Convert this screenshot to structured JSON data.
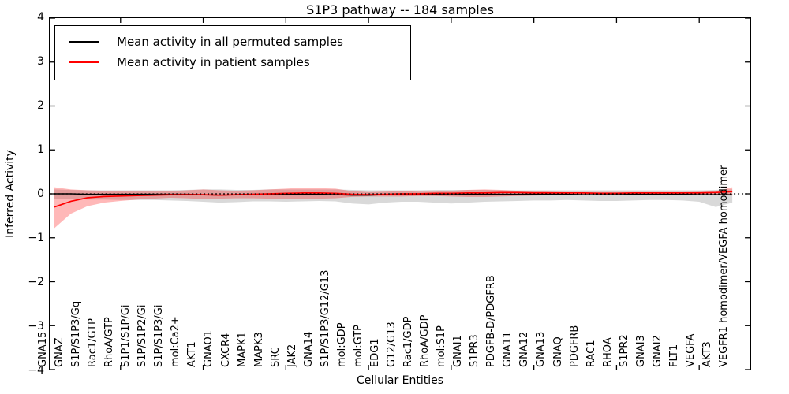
{
  "title": "S1P3 pathway -- 184 samples",
  "axes": {
    "xlabel": "Cellular Entities",
    "ylabel": "Inferred Activity",
    "yticks": [
      "4",
      "3",
      "2",
      "1",
      "0",
      "−1",
      "−2",
      "−3",
      "−4"
    ],
    "ylim": [
      -4,
      4
    ]
  },
  "legend": {
    "items": [
      {
        "label": "Mean activity in all permuted samples",
        "color": "#000000"
      },
      {
        "label": "Mean activity in patient samples",
        "color": "#ff0000"
      }
    ]
  },
  "colors": {
    "permuted_line": "#000000",
    "patient_line": "#ff0000",
    "permuted_band": "#808080",
    "patient_band": "#ff0000",
    "zero_line": "#000000",
    "frame": "#000000"
  },
  "chart_data": {
    "type": "line",
    "title": "S1P3 pathway -- 184 samples",
    "xlabel": "Cellular Entities",
    "ylabel": "Inferred Activity",
    "ylim": [
      -4,
      4
    ],
    "grid": false,
    "legend_position": "upper left",
    "zero_line": true,
    "x_major_tick_indices": [
      4,
      9,
      14,
      19,
      24,
      29,
      34,
      39
    ],
    "categories": [
      "GNA15",
      "GNAZ",
      "S1P/S1P3/Gq",
      "Rac1/GTP",
      "RhoA/GTP",
      "S1P1/S1P/Gi",
      "S1P/S1P2/Gi",
      "S1P/S1P3/Gi",
      "mol:Ca2+",
      "AKT1",
      "GNAO1",
      "CXCR4",
      "MAPK1",
      "MAPK3",
      "SRC",
      "JAK2",
      "GNA14",
      "S1P/S1P3/G12/G13",
      "mol:GDP",
      "mol:GTP",
      "EDG1",
      "G12/G13",
      "Rac1/GDP",
      "RhoA/GDP",
      "mol:S1P",
      "GNAI1",
      "S1PR3",
      "PDGFB-D/PDGFRB",
      "GNA11",
      "GNA12",
      "GNA13",
      "GNAQ",
      "PDGFRB",
      "RAC1",
      "RHOA",
      "S1PR2",
      "GNAI3",
      "GNAI2",
      "FLT1",
      "VEGFA",
      "AKT3",
      "VEGFR1 homodimer/VEGFA homodimer"
    ],
    "series": [
      {
        "name": "Mean activity in all permuted samples",
        "color": "#000000",
        "band_opacity": 0.3,
        "values": [
          0.0,
          0.0,
          -0.01,
          -0.01,
          -0.01,
          -0.01,
          -0.01,
          -0.01,
          -0.01,
          -0.02,
          -0.03,
          -0.02,
          -0.01,
          -0.01,
          -0.01,
          -0.01,
          -0.01,
          -0.02,
          -0.03,
          -0.03,
          -0.02,
          -0.01,
          -0.01,
          -0.01,
          -0.02,
          -0.01,
          -0.01,
          -0.01,
          -0.01,
          -0.01,
          -0.01,
          -0.01,
          -0.02,
          -0.02,
          -0.02,
          -0.01,
          -0.01,
          -0.01,
          -0.01,
          -0.02,
          -0.02,
          -0.02
        ],
        "band_upper": [
          0.1,
          0.09,
          0.08,
          0.08,
          0.08,
          0.08,
          0.08,
          0.08,
          0.09,
          0.1,
          0.1,
          0.09,
          0.09,
          0.1,
          0.1,
          0.1,
          0.1,
          0.1,
          0.09,
          0.08,
          0.08,
          0.08,
          0.08,
          0.09,
          0.09,
          0.09,
          0.09,
          0.08,
          0.08,
          0.08,
          0.08,
          0.08,
          0.08,
          0.08,
          0.08,
          0.08,
          0.08,
          0.08,
          0.08,
          0.08,
          0.09,
          0.1
        ],
        "band_lower": [
          -0.12,
          -0.12,
          -0.13,
          -0.13,
          -0.14,
          -0.14,
          -0.14,
          -0.15,
          -0.16,
          -0.18,
          -0.2,
          -0.19,
          -0.17,
          -0.17,
          -0.18,
          -0.17,
          -0.16,
          -0.17,
          -0.22,
          -0.24,
          -0.2,
          -0.18,
          -0.18,
          -0.2,
          -0.22,
          -0.2,
          -0.18,
          -0.17,
          -0.16,
          -0.15,
          -0.15,
          -0.14,
          -0.15,
          -0.16,
          -0.16,
          -0.15,
          -0.14,
          -0.14,
          -0.15,
          -0.18,
          -0.3,
          -0.2
        ]
      },
      {
        "name": "Mean activity in patient samples",
        "color": "#ff0000",
        "band_opacity": 0.28,
        "values": [
          -0.3,
          -0.17,
          -0.09,
          -0.06,
          -0.05,
          -0.04,
          -0.03,
          -0.02,
          -0.02,
          -0.02,
          -0.03,
          -0.02,
          -0.01,
          0.0,
          0.01,
          0.02,
          0.02,
          0.01,
          -0.01,
          -0.02,
          -0.01,
          0.0,
          0.0,
          0.01,
          0.01,
          0.02,
          0.02,
          0.03,
          0.03,
          0.02,
          0.02,
          0.02,
          0.02,
          0.01,
          0.01,
          0.02,
          0.02,
          0.02,
          0.02,
          0.02,
          0.03,
          0.05
        ],
        "band_upper": [
          0.15,
          0.1,
          0.08,
          0.07,
          0.06,
          0.06,
          0.06,
          0.06,
          0.08,
          0.1,
          0.08,
          0.07,
          0.08,
          0.1,
          0.12,
          0.14,
          0.13,
          0.12,
          0.06,
          0.04,
          0.05,
          0.06,
          0.05,
          0.05,
          0.07,
          0.09,
          0.1,
          0.09,
          0.07,
          0.06,
          0.05,
          0.04,
          0.04,
          0.04,
          0.04,
          0.04,
          0.04,
          0.04,
          0.04,
          0.05,
          0.06,
          0.15
        ],
        "band_lower": [
          -0.78,
          -0.45,
          -0.28,
          -0.2,
          -0.16,
          -0.13,
          -0.11,
          -0.09,
          -0.1,
          -0.12,
          -0.11,
          -0.1,
          -0.1,
          -0.11,
          -0.12,
          -0.12,
          -0.11,
          -0.1,
          -0.07,
          -0.06,
          -0.06,
          -0.06,
          -0.05,
          -0.05,
          -0.06,
          -0.07,
          -0.07,
          -0.06,
          -0.05,
          -0.04,
          -0.03,
          -0.03,
          -0.03,
          -0.03,
          -0.03,
          -0.03,
          -0.02,
          -0.02,
          -0.02,
          -0.02,
          -0.02,
          -0.04
        ]
      }
    ]
  }
}
